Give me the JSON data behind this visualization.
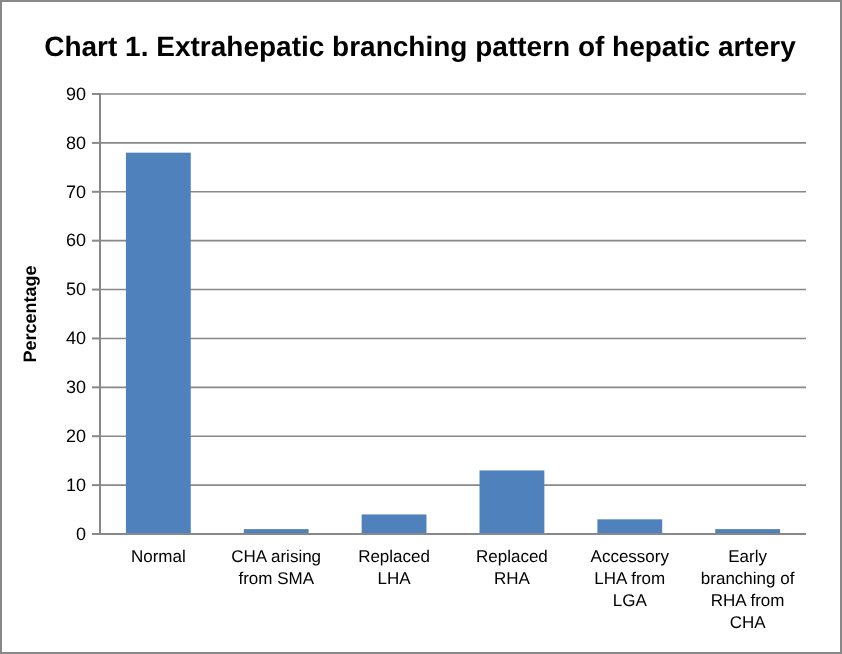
{
  "chart_data": {
    "type": "bar",
    "title": "Chart 1. Extrahepatic branching pattern of hepatic artery",
    "ylabel": "Percentage",
    "categories": [
      "Normal",
      "CHA arising from SMA",
      "Replaced LHA",
      "Replaced RHA",
      "Accessory LHA from LGA",
      "Early branching of RHA from CHA"
    ],
    "values": [
      78,
      1,
      4,
      13,
      3,
      1
    ],
    "color": "#4f81bd",
    "ylim": [
      0,
      90
    ],
    "yticks": [
      0,
      10,
      20,
      30,
      40,
      50,
      60,
      70,
      80,
      90
    ],
    "grid": "y"
  }
}
